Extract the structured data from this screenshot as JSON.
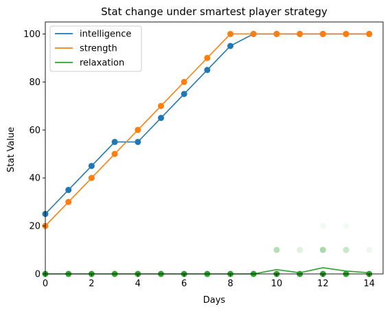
{
  "chart_data": {
    "type": "line",
    "title": "Stat change under smartest player strategy",
    "xlabel": "Days",
    "ylabel": "Stat Value",
    "xlim": [
      0,
      14.6
    ],
    "ylim": [
      0,
      105
    ],
    "xticks": [
      0,
      2,
      4,
      6,
      8,
      10,
      12,
      14
    ],
    "yticks": [
      0,
      20,
      40,
      60,
      80,
      100
    ],
    "grid": false,
    "legend_position": "upper-left",
    "series": [
      {
        "name": "intelligence",
        "color": "#1f77b4",
        "x": [
          0,
          1,
          2,
          3,
          4,
          5,
          6,
          7,
          8,
          9,
          10,
          11,
          12,
          13,
          14
        ],
        "y": [
          25,
          35,
          45,
          55,
          55,
          65,
          75,
          85,
          95,
          100,
          100,
          100,
          100,
          100,
          100
        ]
      },
      {
        "name": "strength",
        "color": "#ff7f0e",
        "x": [
          0,
          1,
          2,
          3,
          4,
          5,
          6,
          7,
          8,
          9,
          10,
          11,
          12,
          13,
          14
        ],
        "y": [
          20,
          30,
          40,
          50,
          60,
          70,
          80,
          90,
          100,
          100,
          100,
          100,
          100,
          100,
          100
        ]
      },
      {
        "name": "relaxation",
        "color": "#2ca02c",
        "x": [
          0,
          1,
          2,
          3,
          4,
          5,
          6,
          7,
          8,
          9,
          10,
          11,
          12,
          13,
          14
        ],
        "y": [
          0,
          0,
          0,
          0,
          0,
          0,
          0,
          0,
          0,
          0,
          1.8,
          0.5,
          2.6,
          1.2,
          0.5
        ]
      }
    ],
    "scatter_points": [
      {
        "x": 10,
        "y": 10,
        "color": "#2ca02c",
        "alpha": 0.35
      },
      {
        "x": 11,
        "y": 10,
        "color": "#2ca02c",
        "alpha": 0.15
      },
      {
        "x": 12,
        "y": 10,
        "color": "#2ca02c",
        "alpha": 0.4
      },
      {
        "x": 13,
        "y": 10,
        "color": "#2ca02c",
        "alpha": 0.25
      },
      {
        "x": 14,
        "y": 10,
        "color": "#2ca02c",
        "alpha": 0.08
      },
      {
        "x": 12,
        "y": 20,
        "color": "#2ca02c",
        "alpha": 0.06
      },
      {
        "x": 13,
        "y": 20,
        "color": "#2ca02c",
        "alpha": 0.05
      },
      {
        "x": 0,
        "y": 0,
        "color": "#2ca02c",
        "alpha": 1
      },
      {
        "x": 1,
        "y": 0,
        "color": "#2ca02c",
        "alpha": 1
      },
      {
        "x": 2,
        "y": 0,
        "color": "#2ca02c",
        "alpha": 1
      },
      {
        "x": 3,
        "y": 0,
        "color": "#2ca02c",
        "alpha": 1
      },
      {
        "x": 4,
        "y": 0,
        "color": "#2ca02c",
        "alpha": 1
      },
      {
        "x": 5,
        "y": 0,
        "color": "#2ca02c",
        "alpha": 1
      },
      {
        "x": 6,
        "y": 0,
        "color": "#2ca02c",
        "alpha": 1
      },
      {
        "x": 7,
        "y": 0,
        "color": "#2ca02c",
        "alpha": 1
      },
      {
        "x": 8,
        "y": 0,
        "color": "#2ca02c",
        "alpha": 1
      },
      {
        "x": 9,
        "y": 0,
        "color": "#2ca02c",
        "alpha": 1
      },
      {
        "x": 10,
        "y": 0,
        "color": "#2ca02c",
        "alpha": 1
      },
      {
        "x": 11,
        "y": 0,
        "color": "#2ca02c",
        "alpha": 1
      },
      {
        "x": 12,
        "y": 0,
        "color": "#2ca02c",
        "alpha": 1
      },
      {
        "x": 13,
        "y": 0,
        "color": "#2ca02c",
        "alpha": 1
      },
      {
        "x": 14,
        "y": 0,
        "color": "#2ca02c",
        "alpha": 1
      }
    ]
  }
}
